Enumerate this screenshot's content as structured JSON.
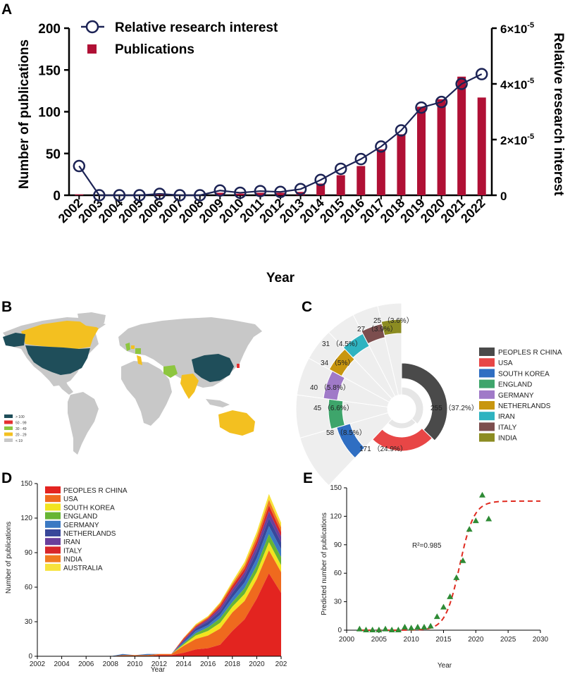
{
  "panels": {
    "a": "A",
    "b": "B",
    "c": "C",
    "d": "D",
    "e": "E"
  },
  "chart_data": [
    {
      "id": "A",
      "type": "bar",
      "xlabel": "Year",
      "ylabel": "Number of publications",
      "y2label": "Relative research interest",
      "ylim": [
        0,
        200
      ],
      "yticks": [
        "0",
        "50",
        "100",
        "150",
        "200"
      ],
      "y2lim": [
        0,
        6e-05
      ],
      "y2ticks": [
        "0",
        "2×10",
        "4×10",
        "6×10"
      ],
      "y2exp": "-5",
      "categories": [
        "2002",
        "2003",
        "2004",
        "2005",
        "2006",
        "2007",
        "2008",
        "2009",
        "2010",
        "2011",
        "2012",
        "2013",
        "2014",
        "2015",
        "2016",
        "2017",
        "2018",
        "2019",
        "2020",
        "2021",
        "2022"
      ],
      "series": [
        {
          "name": "Publications",
          "type": "bar",
          "color": "#b01035",
          "values": [
            1,
            0,
            0,
            0,
            1,
            0,
            0,
            3,
            2,
            3,
            3,
            4,
            14,
            24,
            35,
            55,
            73,
            106,
            115,
            142,
            117
          ]
        },
        {
          "name": "Relative research interest",
          "type": "line",
          "color": "#1c2355",
          "values": [
            1.05e-05,
            0,
            0,
            0,
            5e-07,
            0,
            0,
            1.7e-06,
            9e-07,
            1.5e-06,
            1.2e-06,
            2.2e-06,
            5.5e-06,
            9.5e-06,
            1.3e-05,
            1.75e-05,
            2.33e-05,
            3.15e-05,
            3.35e-05,
            4e-05,
            4.35e-05
          ]
        }
      ],
      "legend": [
        "Relative research interest",
        "Publications"
      ]
    },
    {
      "id": "C",
      "type": "pie",
      "categories": [
        "PEOPLES R CHINA",
        "USA",
        "SOUTH KOREA",
        "ENGLAND",
        "GERMANY",
        "NETHERLANDS",
        "IRAN",
        "ITALY",
        "INDIA"
      ],
      "values": [
        255,
        171,
        58,
        45,
        40,
        34,
        31,
        27,
        25
      ],
      "labels": [
        "255 （37.2%）",
        "171 （24.9%）",
        "58 （8.5%）",
        "45 （6.6%）",
        "40 （5.8%）",
        "34 （5%）",
        "31 （4.5%）",
        "27 （3.9%）",
        "25 （3.6%）"
      ],
      "colors": [
        "#4a4a4a",
        "#e84646",
        "#2f6ec2",
        "#3ea56b",
        "#a07ac8",
        "#c8960f",
        "#2fb3c0",
        "#7c4e4e",
        "#8c8c22"
      ]
    },
    {
      "id": "D",
      "type": "area",
      "xlabel": "Year",
      "ylabel": "Number of publications",
      "xlim": [
        2002,
        2022
      ],
      "ylim": [
        0,
        150
      ],
      "xticks": [
        "2002",
        "2004",
        "2006",
        "2008",
        "2010",
        "2012",
        "2014",
        "2016",
        "2018",
        "2020",
        "202"
      ],
      "yticks": [
        "0",
        "30",
        "60",
        "90",
        "120",
        "150"
      ],
      "x": [
        2002,
        2003,
        2004,
        2005,
        2006,
        2007,
        2008,
        2009,
        2010,
        2011,
        2012,
        2013,
        2014,
        2015,
        2016,
        2017,
        2018,
        2019,
        2020,
        2021,
        2022
      ],
      "series": [
        {
          "name": "PEOPLES R CHINA",
          "color": "#e32420",
          "values": [
            0,
            0,
            0,
            0,
            0,
            0,
            0,
            0,
            0,
            0,
            1,
            1,
            3,
            6,
            7,
            10,
            22,
            32,
            50,
            72,
            55
          ]
        },
        {
          "name": "USA",
          "color": "#ef6a1e",
          "values": [
            0,
            0,
            0,
            0,
            0,
            0,
            0,
            1,
            1,
            1,
            1,
            1,
            6,
            9,
            11,
            14,
            16,
            16,
            17,
            20,
            18
          ]
        },
        {
          "name": "SOUTH KOREA",
          "color": "#f2e41e",
          "values": [
            0,
            0,
            0,
            0,
            0,
            0,
            0,
            0,
            0,
            0,
            0,
            0,
            1,
            3,
            4,
            5,
            5,
            6,
            6,
            7,
            6
          ]
        },
        {
          "name": "ENGLAND",
          "color": "#67b534",
          "values": [
            0,
            0,
            0,
            0,
            0,
            0,
            0,
            0,
            0,
            0,
            0,
            0,
            1,
            2,
            3,
            4,
            4,
            5,
            6,
            7,
            7
          ]
        },
        {
          "name": "GERMANY",
          "color": "#3b79c3",
          "values": [
            0,
            0,
            0,
            0,
            0,
            0,
            0,
            1,
            0,
            1,
            0,
            0,
            1,
            2,
            2,
            3,
            4,
            5,
            6,
            7,
            7
          ]
        },
        {
          "name": "NETHERLANDS",
          "color": "#38479a",
          "values": [
            0,
            0,
            0,
            0,
            0,
            0,
            0,
            0,
            0,
            0,
            0,
            0,
            1,
            2,
            3,
            3,
            4,
            5,
            6,
            7,
            6
          ]
        },
        {
          "name": "IRAN",
          "color": "#6a3f9c",
          "values": [
            0,
            0,
            0,
            0,
            0,
            0,
            0,
            0,
            0,
            0,
            0,
            0,
            1,
            1,
            2,
            3,
            3,
            4,
            5,
            6,
            5
          ]
        },
        {
          "name": "ITALY",
          "color": "#d8262a",
          "values": [
            0,
            0,
            0,
            0,
            0,
            0,
            0,
            0,
            0,
            0,
            0,
            0,
            1,
            1,
            1,
            2,
            3,
            3,
            4,
            5,
            4
          ]
        },
        {
          "name": "INDIA",
          "color": "#f07a20",
          "values": [
            0,
            0,
            0,
            0,
            0,
            0,
            0,
            0,
            0,
            0,
            0,
            0,
            1,
            1,
            1,
            2,
            2,
            3,
            4,
            5,
            4
          ]
        },
        {
          "name": "AUSTRALIA",
          "color": "#f7e23a",
          "values": [
            0,
            0,
            0,
            0,
            0,
            0,
            0,
            0,
            0,
            0,
            0,
            0,
            0,
            1,
            1,
            1,
            2,
            3,
            4,
            5,
            4
          ]
        }
      ]
    },
    {
      "id": "E",
      "type": "scatter",
      "xlabel": "Year",
      "ylabel": "Predicted number of publications",
      "xlim": [
        2000,
        2030
      ],
      "ylim": [
        0,
        150
      ],
      "xticks": [
        "2000",
        "2005",
        "2010",
        "2015",
        "2020",
        "2025",
        "2030"
      ],
      "yticks": [
        "0",
        "30",
        "60",
        "90",
        "120",
        "150"
      ],
      "annotation": "R²=0.985",
      "points": {
        "x": [
          2002,
          2003,
          2004,
          2005,
          2006,
          2007,
          2008,
          2009,
          2010,
          2011,
          2012,
          2013,
          2014,
          2015,
          2016,
          2017,
          2018,
          2019,
          2020,
          2021,
          2022
        ],
        "y": [
          1,
          0,
          0,
          0,
          1,
          0,
          0,
          3,
          2,
          3,
          3,
          4,
          14,
          24,
          35,
          55,
          73,
          106,
          115,
          142,
          117
        ]
      },
      "fit": {
        "type": "logistic",
        "K": 136,
        "x0": 2017.5,
        "r": 0.9,
        "color": "#e02b20"
      }
    }
  ],
  "map": {
    "legend": [
      {
        "label": "> 100",
        "color": "#1f4e5a"
      },
      {
        "label": "50 - 99",
        "color": "#e53030"
      },
      {
        "label": "30 - 49",
        "color": "#8dc63f"
      },
      {
        "label": "20 - 29",
        "color": "#f3c020"
      },
      {
        "label": "< 19",
        "color": "#c8c8c8"
      }
    ]
  }
}
